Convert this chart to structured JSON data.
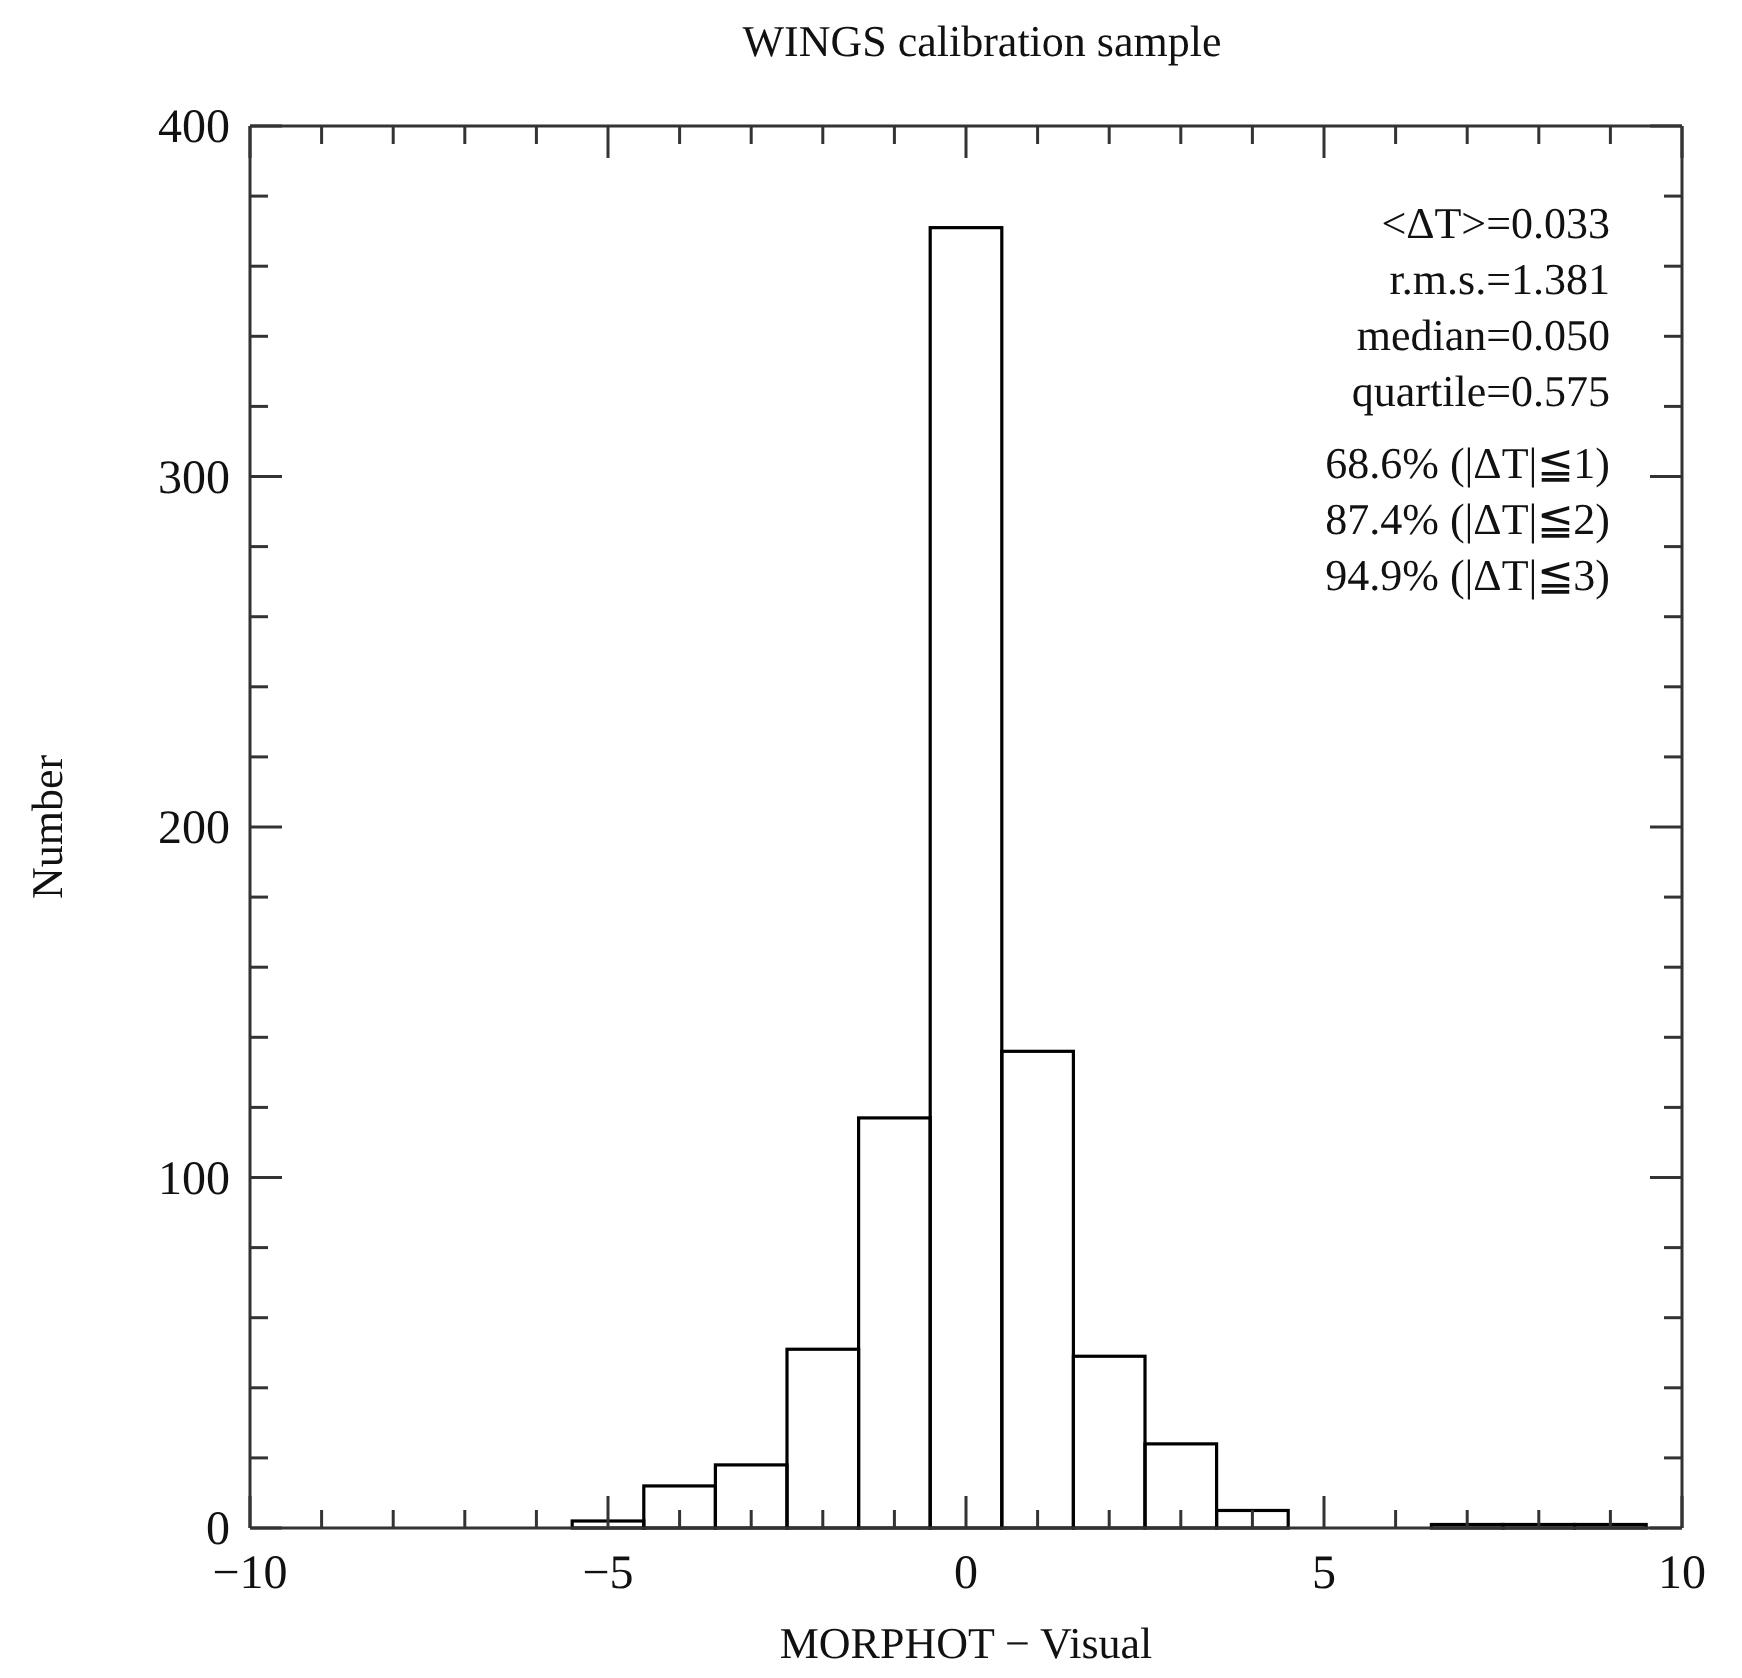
{
  "chart_data": {
    "type": "histogram",
    "title": "WINGS calibration sample",
    "xlabel": "MORPHOT − Visual",
    "ylabel": "Number",
    "bins": [
      -5.5,
      -4.5,
      -3.5,
      -2.5,
      -1.5,
      -0.5,
      0.5,
      1.5,
      2.5,
      3.5,
      4.5,
      5.5,
      6.5,
      7.5,
      8.5,
      9.5
    ],
    "values": [
      2,
      12,
      18,
      51,
      117,
      371,
      136,
      49,
      24,
      5,
      0,
      0,
      1,
      1,
      1
    ],
    "color": "#000000",
    "xlim": [
      -10,
      10
    ],
    "xticks": [
      -10,
      {
        "value": -9,
        "label": null
      },
      {
        "value": -8,
        "label": null
      },
      {
        "value": -7,
        "label": null
      },
      {
        "value": -6,
        "label": null
      },
      -5,
      {
        "value": -4,
        "label": null
      },
      {
        "value": -3,
        "label": null
      },
      {
        "value": -2,
        "label": null
      },
      {
        "value": -1,
        "label": null
      },
      0,
      {
        "value": 1,
        "label": null
      },
      {
        "value": 2,
        "label": null
      },
      {
        "value": 3,
        "label": null
      },
      {
        "value": 4,
        "label": null
      },
      5,
      {
        "value": 6,
        "label": null
      },
      {
        "value": 7,
        "label": null
      },
      {
        "value": 8,
        "label": null
      },
      {
        "value": 9,
        "label": null
      },
      10
    ],
    "ylim": [
      0,
      400
    ],
    "yticks": [
      0,
      {
        "value": 20,
        "label": null
      },
      {
        "value": 40,
        "label": null
      },
      {
        "value": 60,
        "label": null
      },
      {
        "value": 80,
        "label": null
      },
      100,
      {
        "value": 120,
        "label": null
      },
      {
        "value": 140,
        "label": null
      },
      {
        "value": 160,
        "label": null
      },
      {
        "value": 180,
        "label": null
      },
      200,
      {
        "value": 220,
        "label": null
      },
      {
        "value": 240,
        "label": null
      },
      {
        "value": 260,
        "label": null
      },
      {
        "value": 280,
        "label": null
      },
      300,
      {
        "value": 320,
        "label": null
      },
      {
        "value": 340,
        "label": null
      },
      {
        "value": 360,
        "label": null
      },
      {
        "value": 380,
        "label": null
      },
      400
    ],
    "grid": false,
    "annotations": [
      "<ΔT>=0.033",
      "r.m.s.=1.381",
      "median=0.050",
      "quartile=0.575",
      "68.6% (|ΔT|≦1)",
      "87.4% (|ΔT|≦2)",
      "94.9% (|ΔT|≦3)"
    ]
  }
}
